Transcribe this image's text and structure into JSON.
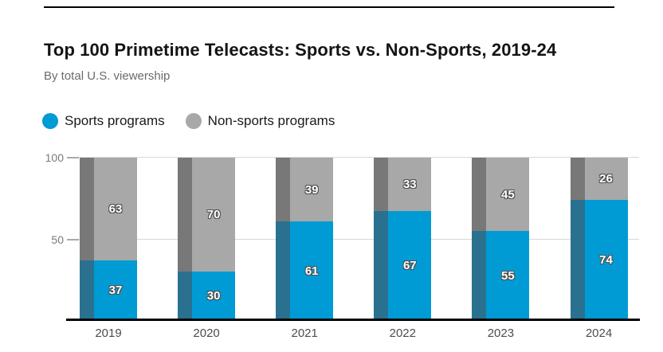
{
  "page": {
    "title": "Top 100 Primetime Telecasts: Sports vs. Non-Sports, 2019-24",
    "subtitle": "By total U.S. viewership"
  },
  "colors": {
    "sports_main": "#009bd5",
    "sports_shade": "#2a7190",
    "nonsports_main": "#a8a8a8",
    "nonsports_shade": "#787878",
    "gridline": "#d8d8d8",
    "baseline": "#000000",
    "value_label_text": "#ffffff"
  },
  "chart_data": {
    "type": "bar",
    "stacked": true,
    "title": "Top 100 Primetime Telecasts: Sports vs. Non-Sports, 2019-24",
    "subtitle": "By total U.S. viewership",
    "categories": [
      "2019",
      "2020",
      "2021",
      "2022",
      "2023",
      "2024"
    ],
    "series": [
      {
        "name": "Sports programs",
        "color": "#009bd5",
        "shade_color": "#2a7190",
        "values": [
          37,
          30,
          61,
          67,
          55,
          74
        ]
      },
      {
        "name": "Non-sports programs",
        "color": "#a8a8a8",
        "shade_color": "#787878",
        "values": [
          63,
          70,
          39,
          33,
          45,
          26
        ]
      }
    ],
    "ylim": [
      0,
      100
    ],
    "yticks": [
      50,
      100
    ],
    "grid": "horizontal",
    "legend_position": "top-left",
    "value_labels": true,
    "xlabel": "",
    "ylabel": ""
  }
}
